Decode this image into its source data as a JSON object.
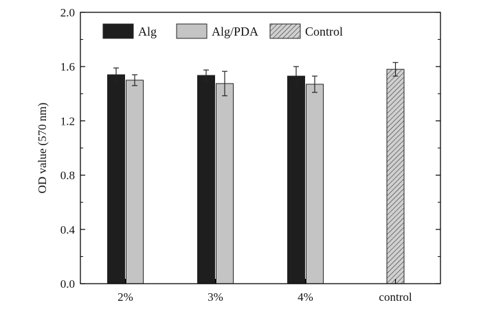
{
  "chart_data": {
    "type": "bar",
    "title": "",
    "xlabel": "",
    "ylabel": "OD value (570 nm)",
    "ylim": [
      0.0,
      2.0
    ],
    "yticks": [
      0.0,
      0.4,
      0.8,
      1.2,
      1.6,
      2.0
    ],
    "ytick_labels": [
      "0.0",
      "0.4",
      "0.8",
      "1.2",
      "1.6",
      "2.0"
    ],
    "categories": [
      "2%",
      "3%",
      "4%",
      "control"
    ],
    "series": [
      {
        "name": "Alg",
        "color": "#1e1e1e",
        "pattern": "solid",
        "values": [
          1.54,
          1.535,
          1.53,
          null
        ],
        "errors": [
          0.05,
          0.04,
          0.07,
          null
        ]
      },
      {
        "name": "Alg/PDA",
        "color": "#c4c4c4",
        "pattern": "solid",
        "values": [
          1.5,
          1.475,
          1.47,
          null
        ],
        "errors": [
          0.04,
          0.09,
          0.06,
          null
        ]
      },
      {
        "name": "Control",
        "color": "#b8b8b8",
        "pattern": "hatch",
        "values": [
          null,
          null,
          null,
          1.58
        ],
        "errors": [
          null,
          null,
          null,
          0.05
        ]
      }
    ],
    "grid": false,
    "legend_position": "top-left"
  }
}
